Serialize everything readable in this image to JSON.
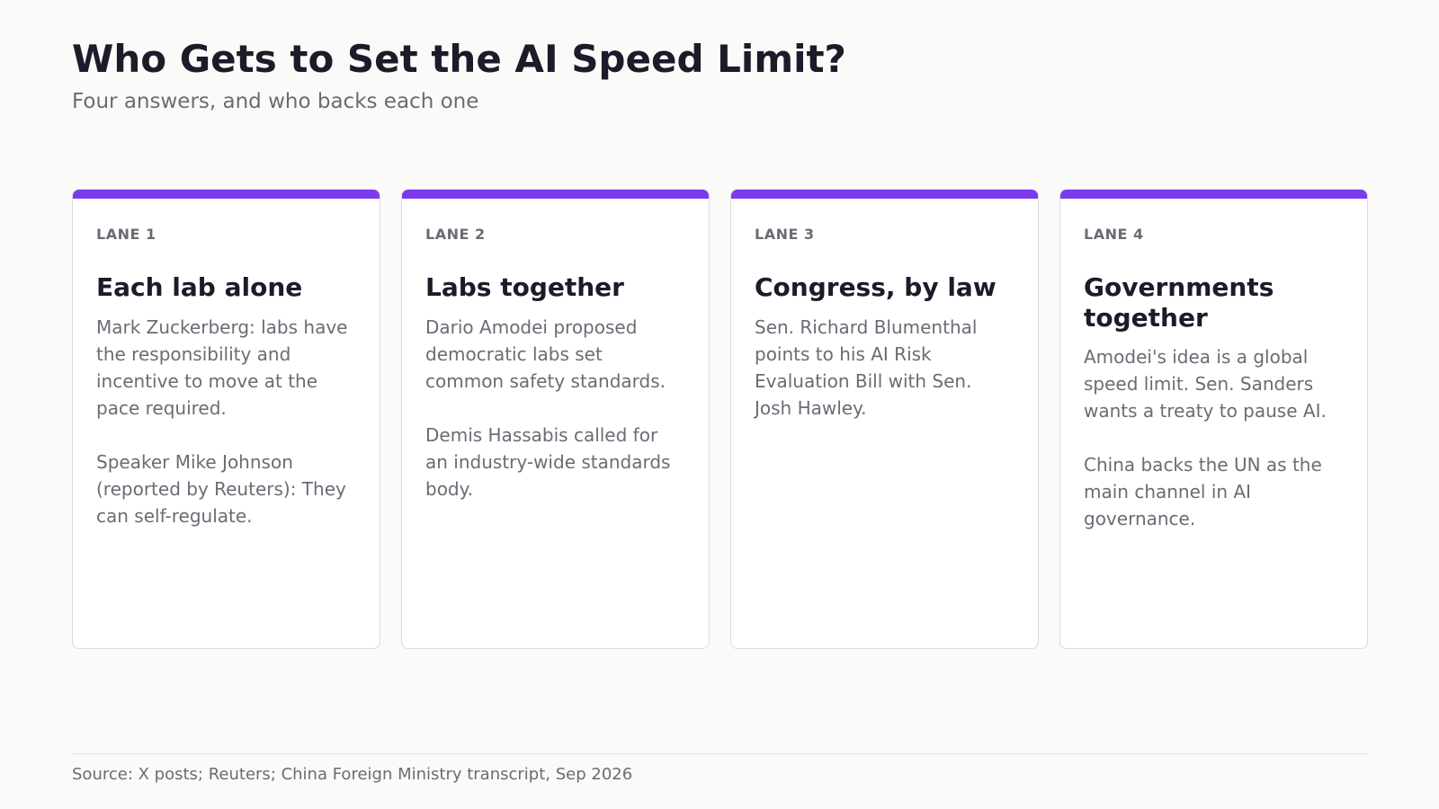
{
  "header": {
    "title": "Who Gets to Set the AI Speed Limit?",
    "subtitle": "Four answers, and who backs each one"
  },
  "colors": {
    "accent": "#7c3aed",
    "background": "#fafaf9",
    "heading": "#1c1b29",
    "muted": "#6b6b75"
  },
  "lanes": [
    {
      "label": "LANE 1",
      "title": "Each lab alone",
      "paragraphs": [
        "Mark Zuckerberg: labs have the responsibility and incentive to move at the pace required.",
        "Speaker Mike Johnson (reported by Reuters): They can self-regulate."
      ]
    },
    {
      "label": "LANE 2",
      "title": "Labs together",
      "paragraphs": [
        "Dario Amodei proposed democratic labs set common safety standards.",
        "Demis Hassabis called for an industry-wide standards body."
      ]
    },
    {
      "label": "LANE 3",
      "title": "Congress, by law",
      "paragraphs": [
        "Sen. Richard Blumenthal points to his AI Risk Evaluation Bill with Sen. Josh Hawley."
      ]
    },
    {
      "label": "LANE 4",
      "title": "Governments together",
      "paragraphs": [
        "Amodei's idea is a global speed limit. Sen. Sanders wants a treaty to pause AI.",
        "China backs the UN as the main channel in AI governance."
      ]
    }
  ],
  "footer": {
    "source": "Source: X posts; Reuters; China Foreign Ministry transcript, Sep 2026"
  }
}
